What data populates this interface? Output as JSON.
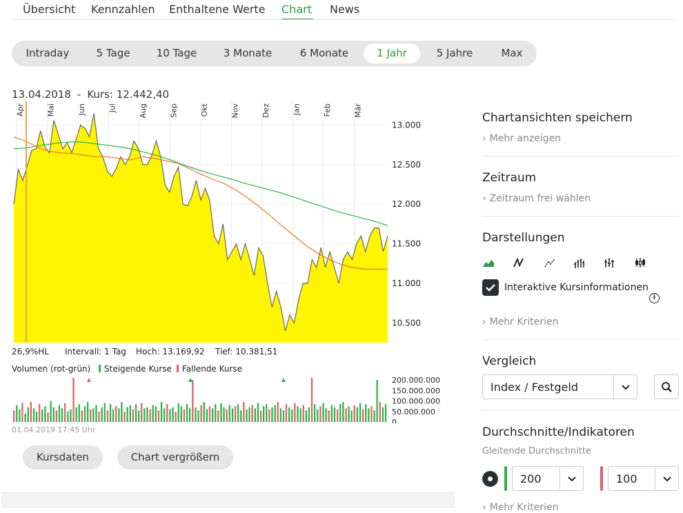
{
  "nav": {
    "tabs": [
      {
        "label": "Übersicht"
      },
      {
        "label": "Kennzahlen"
      },
      {
        "label": "Enthaltene Werte"
      },
      {
        "label": "Chart",
        "active": true
      },
      {
        "label": "News"
      }
    ]
  },
  "ranges": [
    {
      "label": "Intraday"
    },
    {
      "label": "5 Tage"
    },
    {
      "label": "10 Tage"
    },
    {
      "label": "3 Monate"
    },
    {
      "label": "6 Monate"
    },
    {
      "label": "1 Jahr",
      "active": true
    },
    {
      "label": "5 Jahre"
    },
    {
      "label": "Max"
    }
  ],
  "chart_header": {
    "date": "13.04.2018",
    "separator": "-",
    "kurs": "Kurs: 12.442,40"
  },
  "chart_data": {
    "type": "area",
    "months": [
      "Apr",
      "Mai",
      "Jun",
      "Jul",
      "Aug",
      "Sep",
      "Okt",
      "Nov",
      "Dez",
      "Jan",
      "Feb",
      "Mär"
    ],
    "y_ticks": [
      "13.000",
      "12.500",
      "12.000",
      "11.500",
      "11.000",
      "10.500"
    ],
    "ylim": [
      10250,
      13300
    ],
    "series": [
      {
        "name": "Kurs",
        "color": "#fff500",
        "line_color": "#666666",
        "values": [
          12000,
          12440,
          12300,
          12480,
          12680,
          12700,
          12930,
          12720,
          12650,
          13060,
          12880,
          12700,
          12780,
          12650,
          12820,
          13000,
          12960,
          12850,
          13150,
          12700,
          12600,
          12420,
          12350,
          12450,
          12600,
          12500,
          12600,
          12800,
          12700,
          12500,
          12500,
          12620,
          12800,
          12600,
          12240,
          12150,
          12350,
          12470,
          12000,
          11980,
          12100,
          12300,
          12050,
          12200,
          12050,
          11600,
          11500,
          11750,
          11300,
          11400,
          11500,
          11300,
          11500,
          11300,
          11100,
          11450,
          11350,
          11000,
          10700,
          10900,
          10700,
          10400,
          10600,
          10500,
          10800,
          11000,
          11000,
          11300,
          11200,
          11450,
          11200,
          11400,
          11200,
          11000,
          11300,
          11400,
          11300,
          11500,
          11600,
          11400,
          11600,
          11700,
          11700,
          11400,
          11600
        ]
      },
      {
        "name": "Durchschnitt 200",
        "color": "#2eb04a",
        "values": [
          12700,
          12710,
          12740,
          12760,
          12780,
          12790,
          12780,
          12760,
          12740,
          12720,
          12690,
          12650,
          12610,
          12560,
          12500,
          12450,
          12400,
          12360,
          12320,
          12270,
          12230,
          12190,
          12150,
          12100,
          12050,
          12000,
          11950,
          11900,
          11860,
          11820,
          11780,
          11730
        ]
      },
      {
        "name": "Durchschnitt 100",
        "color": "#e8742a",
        "values": [
          12850,
          12800,
          12720,
          12670,
          12650,
          12640,
          12620,
          12600,
          12600,
          12580,
          12560,
          12600,
          12580,
          12550,
          12520,
          12450,
          12380,
          12320,
          12260,
          12180,
          12080,
          11970,
          11850,
          11720,
          11600,
          11480,
          11380,
          11300,
          11240,
          11200,
          11180,
          11180,
          11180
        ]
      }
    ],
    "hl": "26,9%HL",
    "interval": "Intervall: 1 Tag",
    "hoch": "Hoch: 13.169,92",
    "tief": "Tief: 10.381,51"
  },
  "volume": {
    "label": "Volumen (rot-grün)",
    "rising": "Steigende Kurse",
    "falling": "Fallende Kurse",
    "rising_color": "#2eb04a",
    "falling_color": "#e0606a",
    "y_ticks": [
      "200.000.000",
      "150.000.000",
      "100.000.000",
      "50.000.000",
      "0"
    ],
    "bars": [
      55,
      80,
      60,
      90,
      40,
      70,
      95,
      65,
      50,
      85,
      60,
      75,
      45,
      100,
      70,
      55,
      80,
      65,
      90,
      50,
      60,
      210,
      70,
      85,
      55,
      75,
      95,
      60,
      65,
      80,
      50,
      70,
      90,
      55,
      85,
      60,
      75,
      65,
      95,
      50,
      70,
      80,
      60,
      85,
      55,
      90,
      65,
      70,
      60,
      80,
      75,
      55,
      95,
      65,
      85,
      60,
      70,
      50,
      90,
      75,
      60,
      85,
      65,
      200,
      70,
      55,
      80,
      95,
      60,
      75,
      65,
      85,
      55,
      90,
      70,
      60,
      80,
      65,
      75,
      85,
      55,
      95,
      60,
      70,
      80,
      65,
      90,
      55,
      75,
      85,
      60,
      70,
      80,
      95,
      65,
      55,
      85,
      70,
      60,
      90,
      75,
      65,
      80,
      55,
      70,
      210,
      85,
      60,
      75,
      90,
      65,
      55,
      80,
      70,
      60,
      85,
      95,
      65,
      75,
      55,
      80,
      70,
      90,
      60,
      85,
      65,
      75,
      55,
      200,
      95,
      70,
      85
    ]
  },
  "timestamp": "01.04.2019 17:45 Uhr",
  "buttons": {
    "kursdaten": "Kursdaten",
    "vergroessern": "Chart vergrößern"
  },
  "sidebar": {
    "save_title": "Chartansichten speichern",
    "save_link": "Mehr anzeigen",
    "zeitraum_title": "Zeitraum",
    "zeitraum_link": "Zeitraum frei wählen",
    "darst_title": "Darstellungen",
    "darst_icons": [
      "area-chart-icon",
      "line-chart-icon",
      "dotted-line-chart-icon",
      "ohlc-chart-icon",
      "hlc-chart-icon",
      "candlestick-chart-icon"
    ],
    "checkbox_label": "Interaktive Kursinformationen",
    "more_criteria": "Mehr Kriterien",
    "vergleich_title": "Vergleich",
    "vergleich_value": "Index / Festgeld",
    "durch_title": "Durchschnitte/Indikatoren",
    "durch_sub": "Gleitende Durchschnitte",
    "avg1_value": "200",
    "avg2_value": "100",
    "avg1_color": "#2eb04a",
    "avg2_color": "#e0606a",
    "more_criteria2": "Mehr Kriterien"
  }
}
